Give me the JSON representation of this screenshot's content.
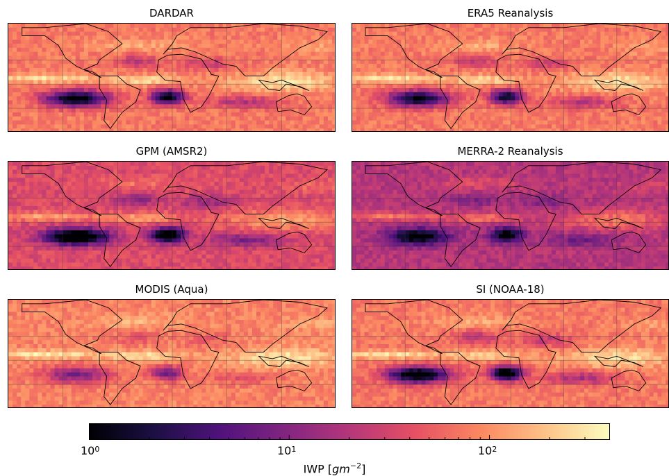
{
  "chart_data": [
    {
      "type": "heatmap",
      "title": "DARDAR",
      "scale": "log",
      "colormap": "magma",
      "dark_regions": [
        "tropical South Pacific",
        "tropical South Atlantic"
      ],
      "bright_band": "ITCZ / equator"
    },
    {
      "type": "heatmap",
      "title": "ERA5 Reanalysis",
      "scale": "log",
      "colormap": "magma",
      "dark_regions": [
        "tropical South Pacific",
        "tropical South Atlantic"
      ],
      "bright_band": "ITCZ / equator"
    },
    {
      "type": "heatmap",
      "title": "GPM (AMSR2)",
      "scale": "log",
      "colormap": "magma",
      "dark_regions": [
        "tropical South Pacific",
        "tropical South Atlantic"
      ],
      "bright_band": "ITCZ / equator"
    },
    {
      "type": "heatmap",
      "title": "MERRA-2 Reanalysis",
      "scale": "log",
      "colormap": "magma",
      "dark_regions": [
        "tropical South Pacific",
        "tropical South Atlantic"
      ],
      "bright_band": "ITCZ / equator"
    },
    {
      "type": "heatmap",
      "title": "MODIS (Aqua)",
      "scale": "log",
      "colormap": "magma",
      "dark_regions": [
        "tropical South Pacific",
        "tropical South Atlantic"
      ],
      "bright_band": "ITCZ / equator"
    },
    {
      "type": "heatmap",
      "title": "SI (NOAA-18)",
      "scale": "log",
      "colormap": "magma",
      "dark_regions": [
        "tropical South Pacific",
        "tropical South Atlantic"
      ],
      "bright_band": "ITCZ / equator"
    }
  ],
  "colorbar": {
    "label_text": "IWP [",
    "label_unit": "gm",
    "label_exp": "−2",
    "label_close": "]",
    "scale": "log",
    "range": [
      1,
      400
    ],
    "ticks": [
      {
        "base": "10",
        "exp": "0",
        "value": 1
      },
      {
        "base": "10",
        "exp": "1",
        "value": 10
      },
      {
        "base": "10",
        "exp": "2",
        "value": 100
      }
    ],
    "colormap": "magma"
  },
  "colors": {
    "magma_stops": [
      "#000004",
      "#1c1044",
      "#4f127b",
      "#812581",
      "#b5367a",
      "#e55064",
      "#fb8761",
      "#fec287",
      "#fcfdbf"
    ],
    "coastline": "#000000",
    "gridline": "#333333"
  }
}
